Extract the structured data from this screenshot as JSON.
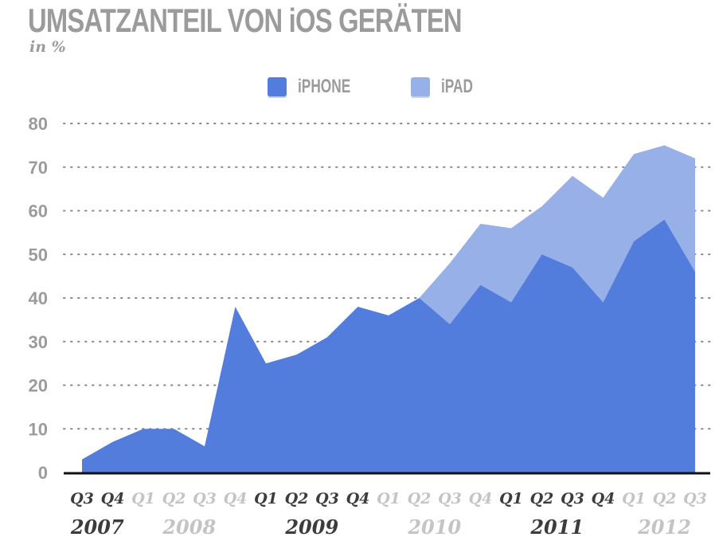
{
  "chart_data": {
    "type": "area",
    "stacked": true,
    "title": "UMSATZANTEIL VON iOS GERÄTEN",
    "subtitle": "in %",
    "xlabel": "",
    "ylabel": "",
    "ylim": [
      0,
      80
    ],
    "yticks": [
      "0",
      "10",
      "20",
      "30",
      "40",
      "50",
      "60",
      "70",
      "80"
    ],
    "grid": true,
    "legend_position": "top-center",
    "categories": [
      "Q3",
      "Q4",
      "Q1",
      "Q2",
      "Q3",
      "Q4",
      "Q1",
      "Q2",
      "Q3",
      "Q4",
      "Q1",
      "Q2",
      "Q3",
      "Q4",
      "Q1",
      "Q2",
      "Q3",
      "Q4",
      "Q1",
      "Q2",
      "Q3"
    ],
    "category_years": [
      2007,
      2007,
      2008,
      2008,
      2008,
      2008,
      2009,
      2009,
      2009,
      2009,
      2010,
      2010,
      2010,
      2010,
      2011,
      2011,
      2011,
      2011,
      2012,
      2012,
      2012
    ],
    "year_labels": [
      {
        "label": "2007",
        "emphasis": "dark"
      },
      {
        "label": "2008",
        "emphasis": "light"
      },
      {
        "label": "2009",
        "emphasis": "dark"
      },
      {
        "label": "2010",
        "emphasis": "light"
      },
      {
        "label": "2011",
        "emphasis": "dark"
      },
      {
        "label": "2012",
        "emphasis": "light"
      }
    ],
    "series": [
      {
        "name": "iPHONE",
        "color": "#527ddc",
        "values": [
          3,
          7,
          10,
          10,
          6,
          38,
          25,
          27,
          31,
          38,
          36,
          40,
          34,
          43,
          39,
          50,
          47,
          39,
          53,
          58,
          46
        ]
      },
      {
        "name": "iPAD",
        "color": "#97b0e8",
        "values": [
          0,
          0,
          0,
          0,
          0,
          0,
          0,
          0,
          0,
          0,
          0,
          0,
          14,
          14,
          17,
          11,
          21,
          24,
          20,
          17,
          26
        ]
      }
    ],
    "series_totals": [
      3,
      7,
      10,
      10,
      6,
      38,
      25,
      27,
      31,
      38,
      36,
      40,
      48,
      57,
      56,
      61,
      68,
      63,
      73,
      75,
      72
    ]
  },
  "colors": {
    "text_gray": "#9b9b9b",
    "tick_dark": "#3c3c3c",
    "tick_light": "#c4c4c4",
    "grid": "#888888",
    "axis": "#111111"
  }
}
